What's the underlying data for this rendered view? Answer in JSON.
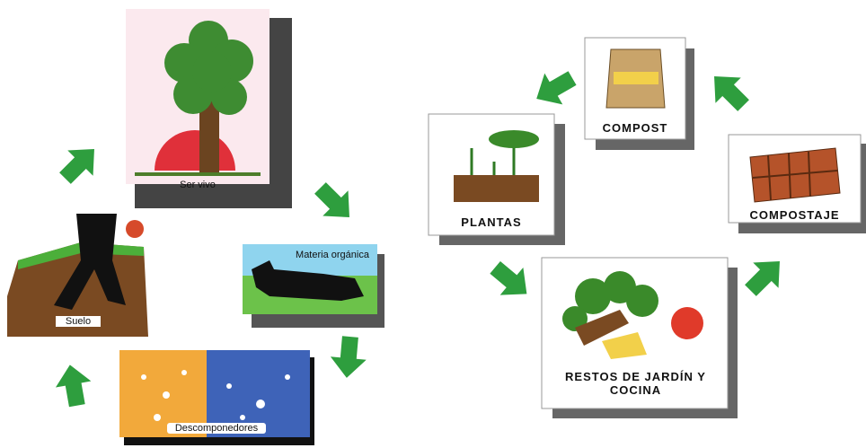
{
  "left_cycle": {
    "nodes": [
      {
        "label": "Ser vivo"
      },
      {
        "label": "Materia orgánica"
      },
      {
        "label": "Descomponedores"
      },
      {
        "label": "Suelo"
      }
    ]
  },
  "right_cycle": {
    "nodes": [
      {
        "label": "COMPOST"
      },
      {
        "label": "COMPOSTAJE"
      },
      {
        "label": "RESTOS DE JARDÍN Y COCINA"
      },
      {
        "label": "PLANTAS"
      }
    ]
  }
}
